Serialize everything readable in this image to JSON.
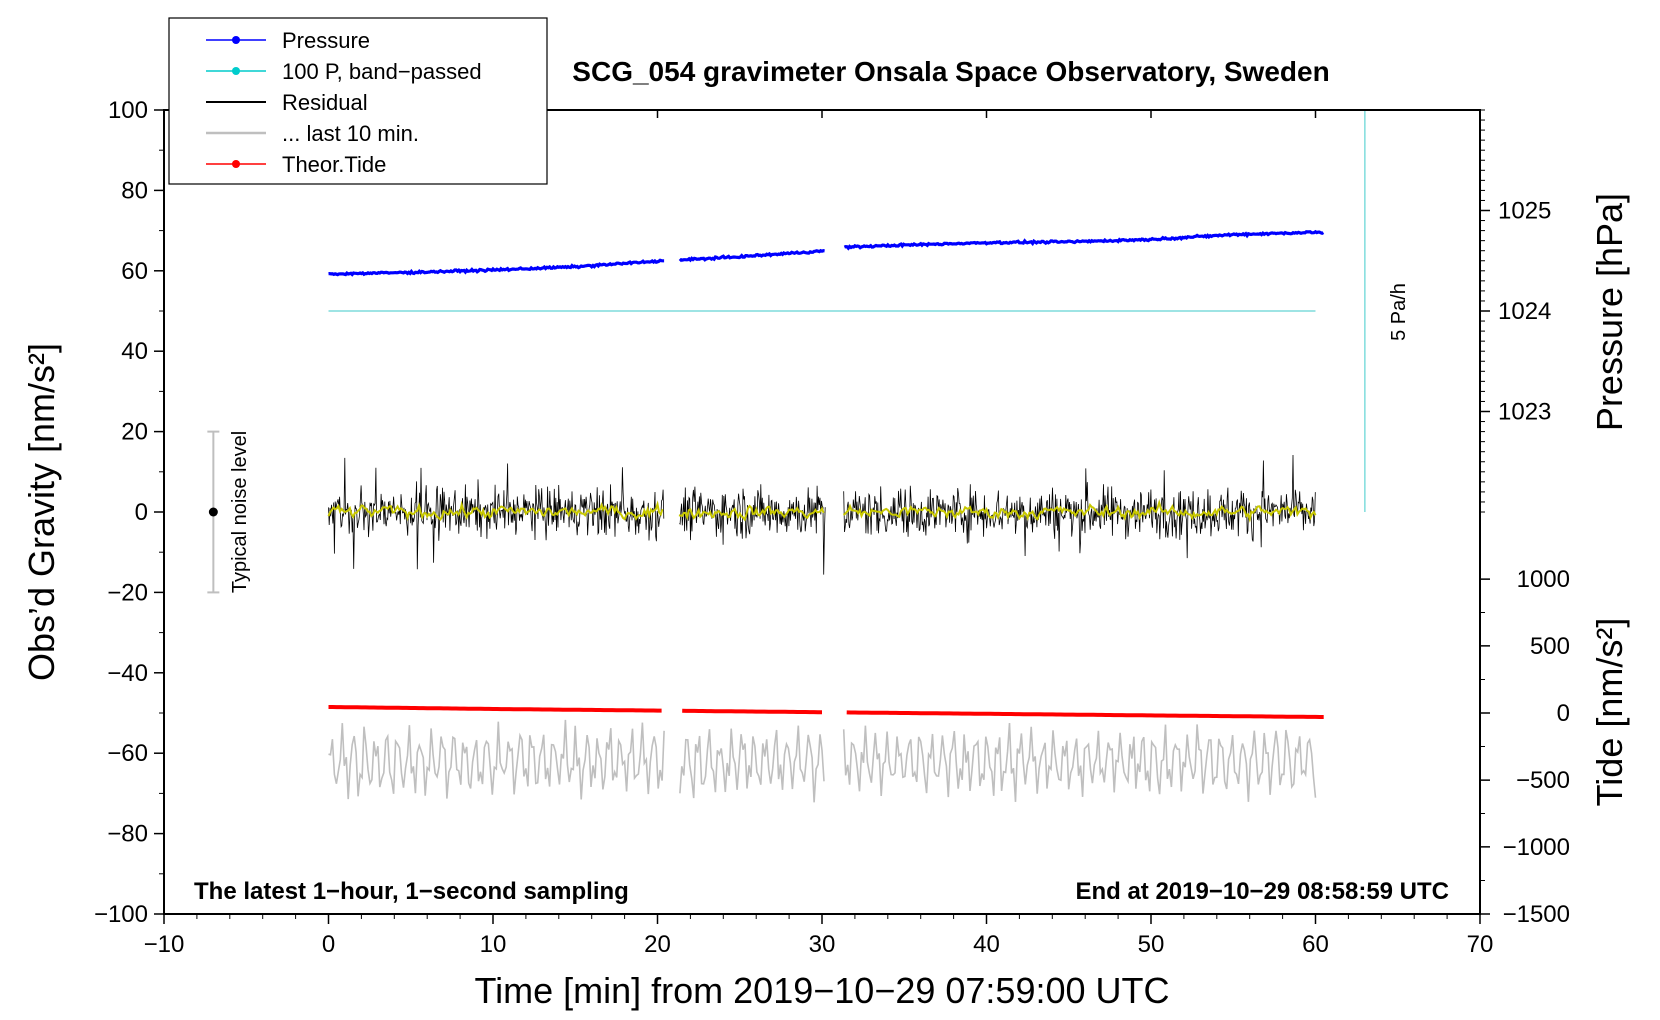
{
  "chart_data": {
    "type": "line",
    "title": "SCG_054 gravimeter Onsala Space Observatory, Sweden",
    "xlabel": "Time [min] from 2019−10−29 07:59:00 UTC",
    "ylabel_left": "Obs’d Gravity [nm/s²]",
    "ylabel_right_pressure": "Pressure [hPa]",
    "ylabel_right_tide": "Tide [nm/s²]",
    "xlim": [
      -10,
      70
    ],
    "ylim": [
      -100,
      100
    ],
    "x_ticks": [
      "−10",
      "0",
      "10",
      "20",
      "30",
      "40",
      "50",
      "60",
      "70"
    ],
    "x_tick_values": [
      -10,
      0,
      10,
      20,
      30,
      40,
      50,
      60,
      70
    ],
    "y_ticks": [
      "100",
      "80",
      "60",
      "40",
      "20",
      "0",
      "−20",
      "−40",
      "−60",
      "−80",
      "−100"
    ],
    "y_tick_values": [
      100,
      80,
      60,
      40,
      20,
      0,
      -20,
      -40,
      -60,
      -80,
      -100
    ],
    "pressure_axis": {
      "ticks": [
        "1025",
        "1024",
        "1023"
      ],
      "tick_values": [
        1025,
        1024,
        1023
      ],
      "gravity_equivalent": [
        75,
        50,
        25
      ]
    },
    "tide_axis": {
      "ticks": [
        "1000",
        "500",
        "0",
        "−500",
        "−1000",
        "−1500"
      ],
      "tick_values": [
        1000,
        500,
        0,
        -500,
        -1000,
        -1500
      ],
      "gravity_equivalent": [
        -16.7,
        -33.3,
        -50,
        -66.7,
        -83.3,
        -100
      ]
    },
    "annotations": {
      "bottom_left": "The latest 1−hour, 1−second sampling",
      "bottom_right": "End at 2019−10−29 08:58:59 UTC",
      "noise_label": "Typical noise level",
      "rate_label": "5 Pa/h"
    },
    "noise_bar": {
      "x": -7,
      "center": 0,
      "range": [
        -20,
        20
      ]
    },
    "rate_bar": {
      "x": 63,
      "range": [
        0,
        100
      ]
    },
    "gaps": [
      [
        20.4,
        21.3
      ],
      [
        30.2,
        31.3
      ]
    ],
    "legend": [
      {
        "label": "Pressure",
        "color": "#0000ff",
        "marker": "dot"
      },
      {
        "label": "100 P, band−passed",
        "color": "#00cccc",
        "marker": "dot"
      },
      {
        "label": "Residual",
        "color": "#000000",
        "marker": "line"
      },
      {
        "label": "... last 10 min.",
        "color": "#bfbfbf",
        "marker": "line"
      },
      {
        "label": "Theor.Tide",
        "color": "#ff0000",
        "marker": "dot"
      }
    ],
    "series": [
      {
        "name": "Pressure",
        "color": "#0000ff",
        "x": [
          0,
          5,
          10,
          15,
          20,
          21.5,
          25,
          30,
          31.5,
          35,
          40,
          45,
          50,
          55,
          60,
          60.5
        ],
        "y": [
          59.2,
          59.6,
          60.2,
          61.0,
          62.4,
          62.7,
          63.5,
          64.9,
          65.9,
          66.4,
          67.0,
          67.2,
          67.8,
          69.0,
          69.6,
          69.4
        ]
      },
      {
        "name": "100 P, band−passed",
        "color": "#7fdcdc",
        "x": [
          0,
          60
        ],
        "y": [
          50,
          50
        ]
      },
      {
        "name": "Residual",
        "color": "#000000",
        "x_range": [
          0,
          60
        ],
        "center": 0,
        "typical_amplitude": 8,
        "max_amplitude": 17
      },
      {
        "name": "Residual smoothed",
        "color": "#c8c800",
        "x_range": [
          0,
          60
        ],
        "center": 0,
        "typical_amplitude": 1.5
      },
      {
        "name": "... last 10 min.",
        "color": "#bfbfbf",
        "x_range": [
          0,
          60
        ],
        "center": -62,
        "typical_amplitude": 8,
        "max_amplitude": 14
      },
      {
        "name": "Theor.Tide",
        "color": "#ff0000",
        "x": [
          0,
          10,
          20,
          30,
          40,
          50,
          60.5
        ],
        "y": [
          -48.5,
          -49.0,
          -49.4,
          -49.8,
          -50.2,
          -50.6,
          -51.0
        ]
      }
    ]
  }
}
